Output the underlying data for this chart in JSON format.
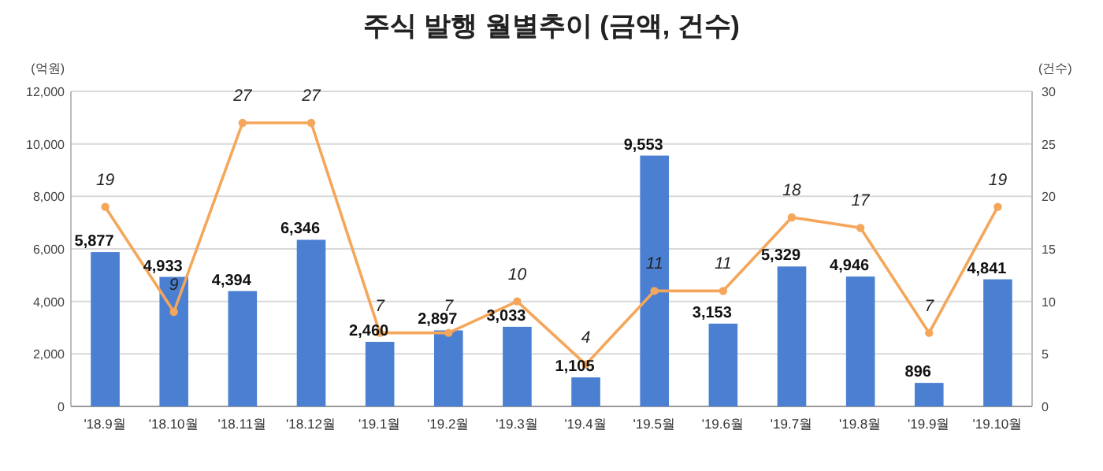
{
  "chart_data": {
    "type": "bar",
    "title": "주식 발행 월별추이 (금액, 건수)",
    "ylabel": "(억원)",
    "y2label": "(건수)",
    "categories": [
      "'18.9월",
      "'18.10월",
      "'18.11월",
      "'18.12월",
      "'19.1월",
      "'19.2월",
      "'19.3월",
      "'19.4월",
      "'19.5월",
      "'19.6월",
      "'19.7월",
      "'19.8월",
      "'19.9월",
      "'19.10월"
    ],
    "series": [
      {
        "color": "#4a7fd2",
        "values": [
          5877,
          4933,
          4394,
          6346,
          2460,
          2897,
          3033,
          1105,
          9553,
          3153,
          5329,
          4946,
          896,
          4841
        ],
        "value_labels": [
          "5,877",
          "4,933",
          "4,394",
          "6,346",
          "2,460",
          "2,897",
          "3,033",
          "1,105",
          "9,553",
          "3,153",
          "5,329",
          "4,946",
          "896",
          "4,841"
        ]
      },
      {
        "type": "line",
        "axis": "y2",
        "color": "#f4a65a",
        "marker": "circle",
        "values": [
          19,
          9,
          27,
          27,
          7,
          7,
          10,
          4,
          11,
          11,
          18,
          17,
          7,
          19
        ]
      }
    ],
    "ylim": [
      0,
      12000
    ],
    "yticks": [
      0,
      {
        "value": 2000,
        "label": "2,000"
      },
      {
        "value": 4000,
        "label": "4,000"
      },
      {
        "value": 6000,
        "label": "6,000"
      },
      {
        "value": 8000,
        "label": "8,000"
      },
      {
        "value": 10000,
        "label": "10,000"
      },
      {
        "value": 12000,
        "label": "12,000"
      }
    ],
    "y2lim": [
      0,
      30
    ],
    "y2ticks": [
      0,
      5,
      10,
      15,
      20,
      25,
      30
    ],
    "data_labels": true,
    "grid": "y"
  }
}
